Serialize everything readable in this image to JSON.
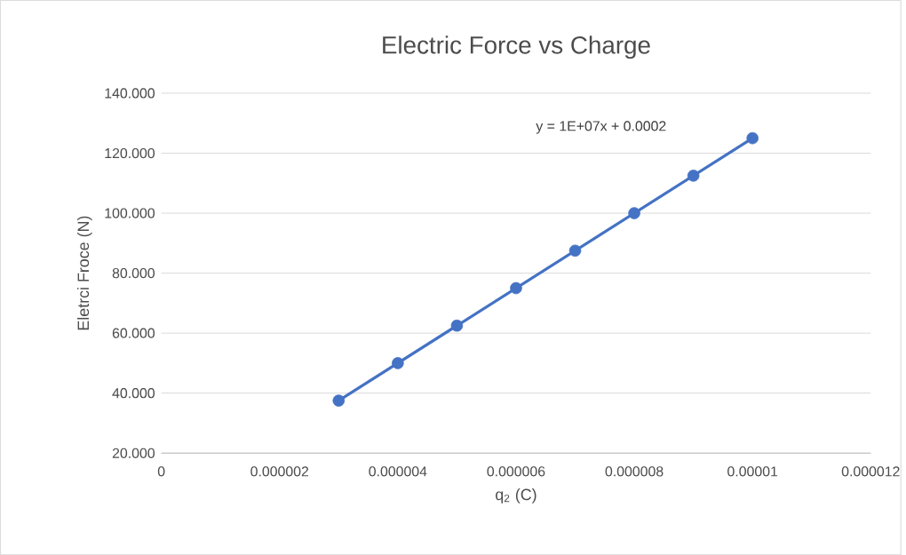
{
  "chart_data": {
    "type": "scatter",
    "title": "Electric Force vs Charge",
    "xlabel": "q$_{2}$ (C)",
    "ylabel": "Eletrci Froce (N)",
    "annotations": [
      "y = 1E+07x + 0.0002"
    ],
    "series": [
      {
        "marker": "circle",
        "color": "#4472c4",
        "x": [
          3e-06,
          4e-06,
          5e-06,
          6e-06,
          7e-06,
          8e-06,
          9e-06,
          1e-05
        ],
        "values": [
          37.5,
          50,
          62.5,
          75,
          87.5,
          100,
          112.5,
          125
        ]
      },
      {
        "type": "line",
        "marker": "none",
        "color": "#4472c4",
        "x": [
          3e-06,
          1e-05
        ],
        "values": [
          37.5,
          125
        ]
      }
    ],
    "xlim": [
      0,
      1.2e-05
    ],
    "xticks": [
      {
        "value": 0,
        "label": "0"
      },
      {
        "value": 2e-06,
        "label": "0.000002"
      },
      {
        "value": 4e-06,
        "label": "0.000004"
      },
      {
        "value": 6e-06,
        "label": "0.000006"
      },
      {
        "value": 8e-06,
        "label": "0.000008"
      },
      {
        "value": 1e-05,
        "label": "0.00001"
      },
      {
        "value": 1.2e-05,
        "label": "0.000012"
      }
    ],
    "ylim": [
      20,
      140
    ],
    "yticks": [
      {
        "value": 20,
        "label": "20.000"
      },
      {
        "value": 40,
        "label": "40.000"
      },
      {
        "value": 60,
        "label": "60.000"
      },
      {
        "value": 80,
        "label": "80.000"
      },
      {
        "value": 100,
        "label": "100.000"
      },
      {
        "value": 120,
        "label": "120.000"
      },
      {
        "value": 140,
        "label": "140.000"
      }
    ],
    "grid": "y",
    "legend": false
  }
}
